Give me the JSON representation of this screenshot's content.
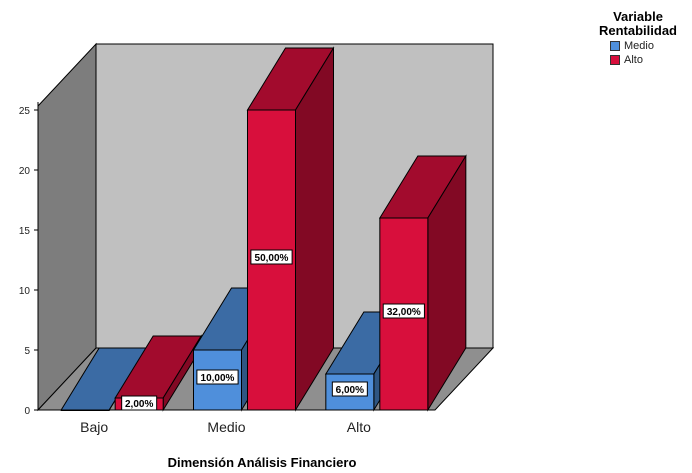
{
  "chart_data": {
    "type": "bar",
    "variant": "3d-clustered",
    "categories": [
      "Bajo",
      "Medio",
      "Alto"
    ],
    "series": [
      {
        "name": "Medio",
        "color": "#4f8fdb",
        "values": [
          0,
          5,
          3
        ],
        "labels": [
          "",
          "10,00%",
          "6,00%"
        ]
      },
      {
        "name": "Alto",
        "color": "#d80f3c",
        "values": [
          1,
          25,
          16
        ],
        "labels": [
          "2,00%",
          "50,00%",
          "32,00%"
        ]
      }
    ],
    "xlabel": "Dimensión Análisis Financiero",
    "ylabel": "",
    "ylim": [
      0,
      25
    ],
    "yticks": [
      0,
      5,
      10,
      15,
      20,
      25
    ],
    "legend": {
      "title_line1": "Variable",
      "title_line2": "Rentabilidad",
      "position": "top-right"
    },
    "grid": false
  }
}
